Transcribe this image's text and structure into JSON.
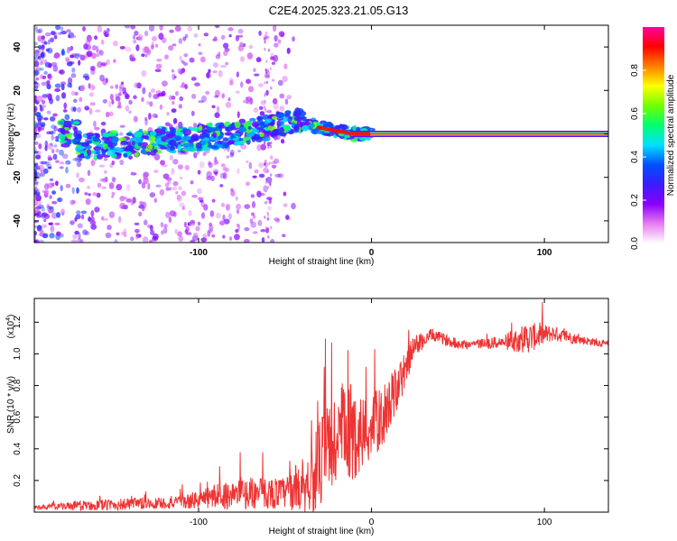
{
  "figure": {
    "title": "C2E4.2025.323.21.05.G13"
  },
  "chart_data": [
    {
      "type": "heatmap",
      "title": "C2E4.2025.323.21.05.G13",
      "xlabel": "Height of straight line (km)",
      "ylabel": "Frequency (Hz)",
      "xlim": [
        -195,
        137
      ],
      "ylim": [
        -50,
        50
      ],
      "xticks": [
        {
          "value": -100,
          "label": "-100"
        },
        {
          "value": 0,
          "label": "0"
        },
        {
          "value": 100,
          "label": "100"
        }
      ],
      "yticks": [
        {
          "value": 40,
          "label": "40"
        },
        {
          "value": 20,
          "label": "20"
        },
        {
          "value": 0,
          "label": "0"
        },
        {
          "value": -20,
          "label": "-20"
        },
        {
          "value": -40,
          "label": "-40"
        }
      ],
      "colorbar": {
        "label": "Normalized spectral amplitude",
        "range": [
          0,
          1
        ],
        "ticks": [
          {
            "value": 0.0,
            "label": "0.0"
          },
          {
            "value": 0.2,
            "label": "0.2"
          },
          {
            "value": 0.4,
            "label": "0.4"
          },
          {
            "value": 0.6,
            "label": "0.6"
          },
          {
            "value": 0.8,
            "label": "0.8"
          }
        ],
        "colors": [
          "#ffffff",
          "#e87df0",
          "#8a00ff",
          "#3a1cff",
          "#0050ff",
          "#00e0ff",
          "#00ff70",
          "#70ff00",
          "#ffff00",
          "#ff8000",
          "#ff0000",
          "#ff00a0"
        ]
      },
      "ridge": {
        "description_points": [
          {
            "x": -170,
            "y": -6
          },
          {
            "x": -150,
            "y": -5
          },
          {
            "x": -120,
            "y": -3
          },
          {
            "x": -100,
            "y": -2
          },
          {
            "x": -80,
            "y": 0
          },
          {
            "x": -60,
            "y": 3
          },
          {
            "x": -50,
            "y": 5
          },
          {
            "x": -42,
            "y": 6
          },
          {
            "x": -35,
            "y": 4
          },
          {
            "x": -25,
            "y": 2
          },
          {
            "x": -10,
            "y": 0
          },
          {
            "x": 0,
            "y": 0
          },
          {
            "x": 137,
            "y": 0
          }
        ]
      }
    },
    {
      "type": "line",
      "xlabel": "Height of straight line (km)",
      "ylabel": "SNR (10 * v/v)",
      "exponent_label": "(x10",
      "exponent_power": "4",
      "exponent_close": ")",
      "xlim": [
        -195,
        137
      ],
      "ylim": [
        0,
        1.35
      ],
      "xticks": [
        {
          "value": -100,
          "label": "-100"
        },
        {
          "value": 0,
          "label": "0"
        },
        {
          "value": 100,
          "label": "100"
        }
      ],
      "yticks": [
        {
          "value": 0.2,
          "label": "0.2"
        },
        {
          "value": 0.4,
          "label": "0.4"
        },
        {
          "value": 0.6,
          "label": "0.6"
        },
        {
          "value": 0.8,
          "label": "0.8"
        },
        {
          "value": 1.0,
          "label": "1.0"
        },
        {
          "value": 1.2,
          "label": "1.2"
        }
      ],
      "series": [
        {
          "name": "SNR",
          "color": "#ee3333",
          "envelope": [
            {
              "x": -195,
              "base": 0.03,
              "noise": 0.01
            },
            {
              "x": -170,
              "base": 0.04,
              "noise": 0.03
            },
            {
              "x": -140,
              "base": 0.05,
              "noise": 0.04
            },
            {
              "x": -110,
              "base": 0.06,
              "noise": 0.04
            },
            {
              "x": -90,
              "base": 0.1,
              "noise": 0.08
            },
            {
              "x": -70,
              "base": 0.12,
              "noise": 0.1
            },
            {
              "x": -50,
              "base": 0.12,
              "noise": 0.1
            },
            {
              "x": -35,
              "base": 0.2,
              "noise": 0.22
            },
            {
              "x": -25,
              "base": 0.4,
              "noise": 0.35
            },
            {
              "x": -15,
              "base": 0.5,
              "noise": 0.35
            },
            {
              "x": -5,
              "base": 0.5,
              "noise": 0.25
            },
            {
              "x": 5,
              "base": 0.58,
              "noise": 0.2
            },
            {
              "x": 15,
              "base": 0.78,
              "noise": 0.15
            },
            {
              "x": 25,
              "base": 1.05,
              "noise": 0.07
            },
            {
              "x": 35,
              "base": 1.12,
              "noise": 0.04
            },
            {
              "x": 50,
              "base": 1.06,
              "noise": 0.03
            },
            {
              "x": 75,
              "base": 1.07,
              "noise": 0.04
            },
            {
              "x": 90,
              "base": 1.1,
              "noise": 0.1
            },
            {
              "x": 105,
              "base": 1.13,
              "noise": 0.05
            },
            {
              "x": 120,
              "base": 1.09,
              "noise": 0.03
            },
            {
              "x": 137,
              "base": 1.06,
              "noise": 0.02
            }
          ]
        }
      ]
    }
  ]
}
